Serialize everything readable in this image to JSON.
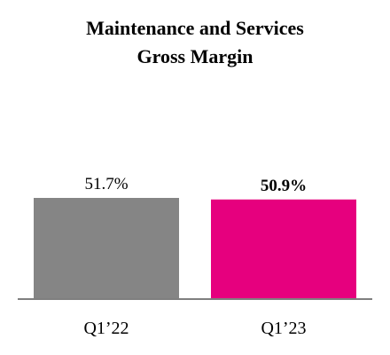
{
  "chart_data": {
    "type": "bar",
    "title_lines": [
      "Maintenance and Services",
      "Gross Margin"
    ],
    "categories": [
      "Q1’22",
      "Q1’23"
    ],
    "values": [
      51.7,
      50.9
    ],
    "value_labels": [
      "51.7%",
      "50.9%"
    ],
    "value_label_bold": [
      false,
      true
    ],
    "colors": [
      "#858585",
      "#e6007e"
    ],
    "axis_color": "#7f7f7f",
    "grid": false,
    "legend": "none",
    "xlabel": "",
    "ylabel": ""
  }
}
